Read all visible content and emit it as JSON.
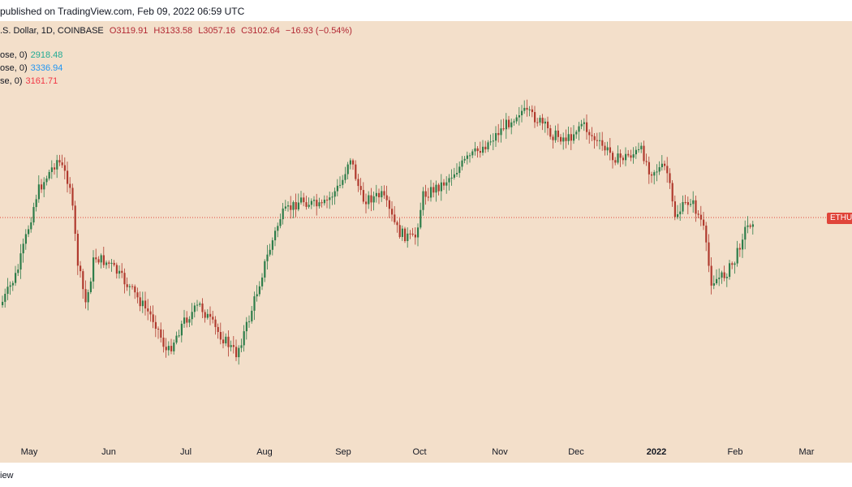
{
  "header": {
    "published": "published on TradingView.com, Feb 09, 2022 06:59 UTC",
    "symbol_desc": ".S. Dollar, 1D, COINBASE",
    "open": "O3119.91",
    "high": "H3133.58",
    "low": "L3057.16",
    "close": "C3102.64",
    "change": "−16.93 (−0.54%)"
  },
  "legend": [
    {
      "label": "ose, 0)",
      "value": "2918.48",
      "color": "#22ab94"
    },
    {
      "label": "ose, 0)",
      "value": "3336.94",
      "color": "#2196f3"
    },
    {
      "label": "se, 0)",
      "value": "3161.71",
      "color": "#f23645"
    }
  ],
  "price_tag": "ETHUS",
  "footer": "iew",
  "colors": {
    "up": "#2e7d4a",
    "down": "#b03a2e",
    "background": "#f3dfca",
    "last_price_line": "#e0453a"
  },
  "chart_data": {
    "type": "candlestick",
    "title": "",
    "xlabel": "",
    "ylabel": "",
    "x_ticks": [
      {
        "label": "May"
      },
      {
        "label": "Jun"
      },
      {
        "label": "Jul"
      },
      {
        "label": "Aug"
      },
      {
        "label": "Sep"
      },
      {
        "label": "Oct"
      },
      {
        "label": "Nov"
      },
      {
        "label": "Dec"
      },
      {
        "label": "2022",
        "bold": true
      },
      {
        "label": "Feb"
      },
      {
        "label": "Mar"
      }
    ],
    "approx_close_path_pixels_note": "",
    "last_close": 3102.64,
    "last_price_line": 3102.64
  }
}
